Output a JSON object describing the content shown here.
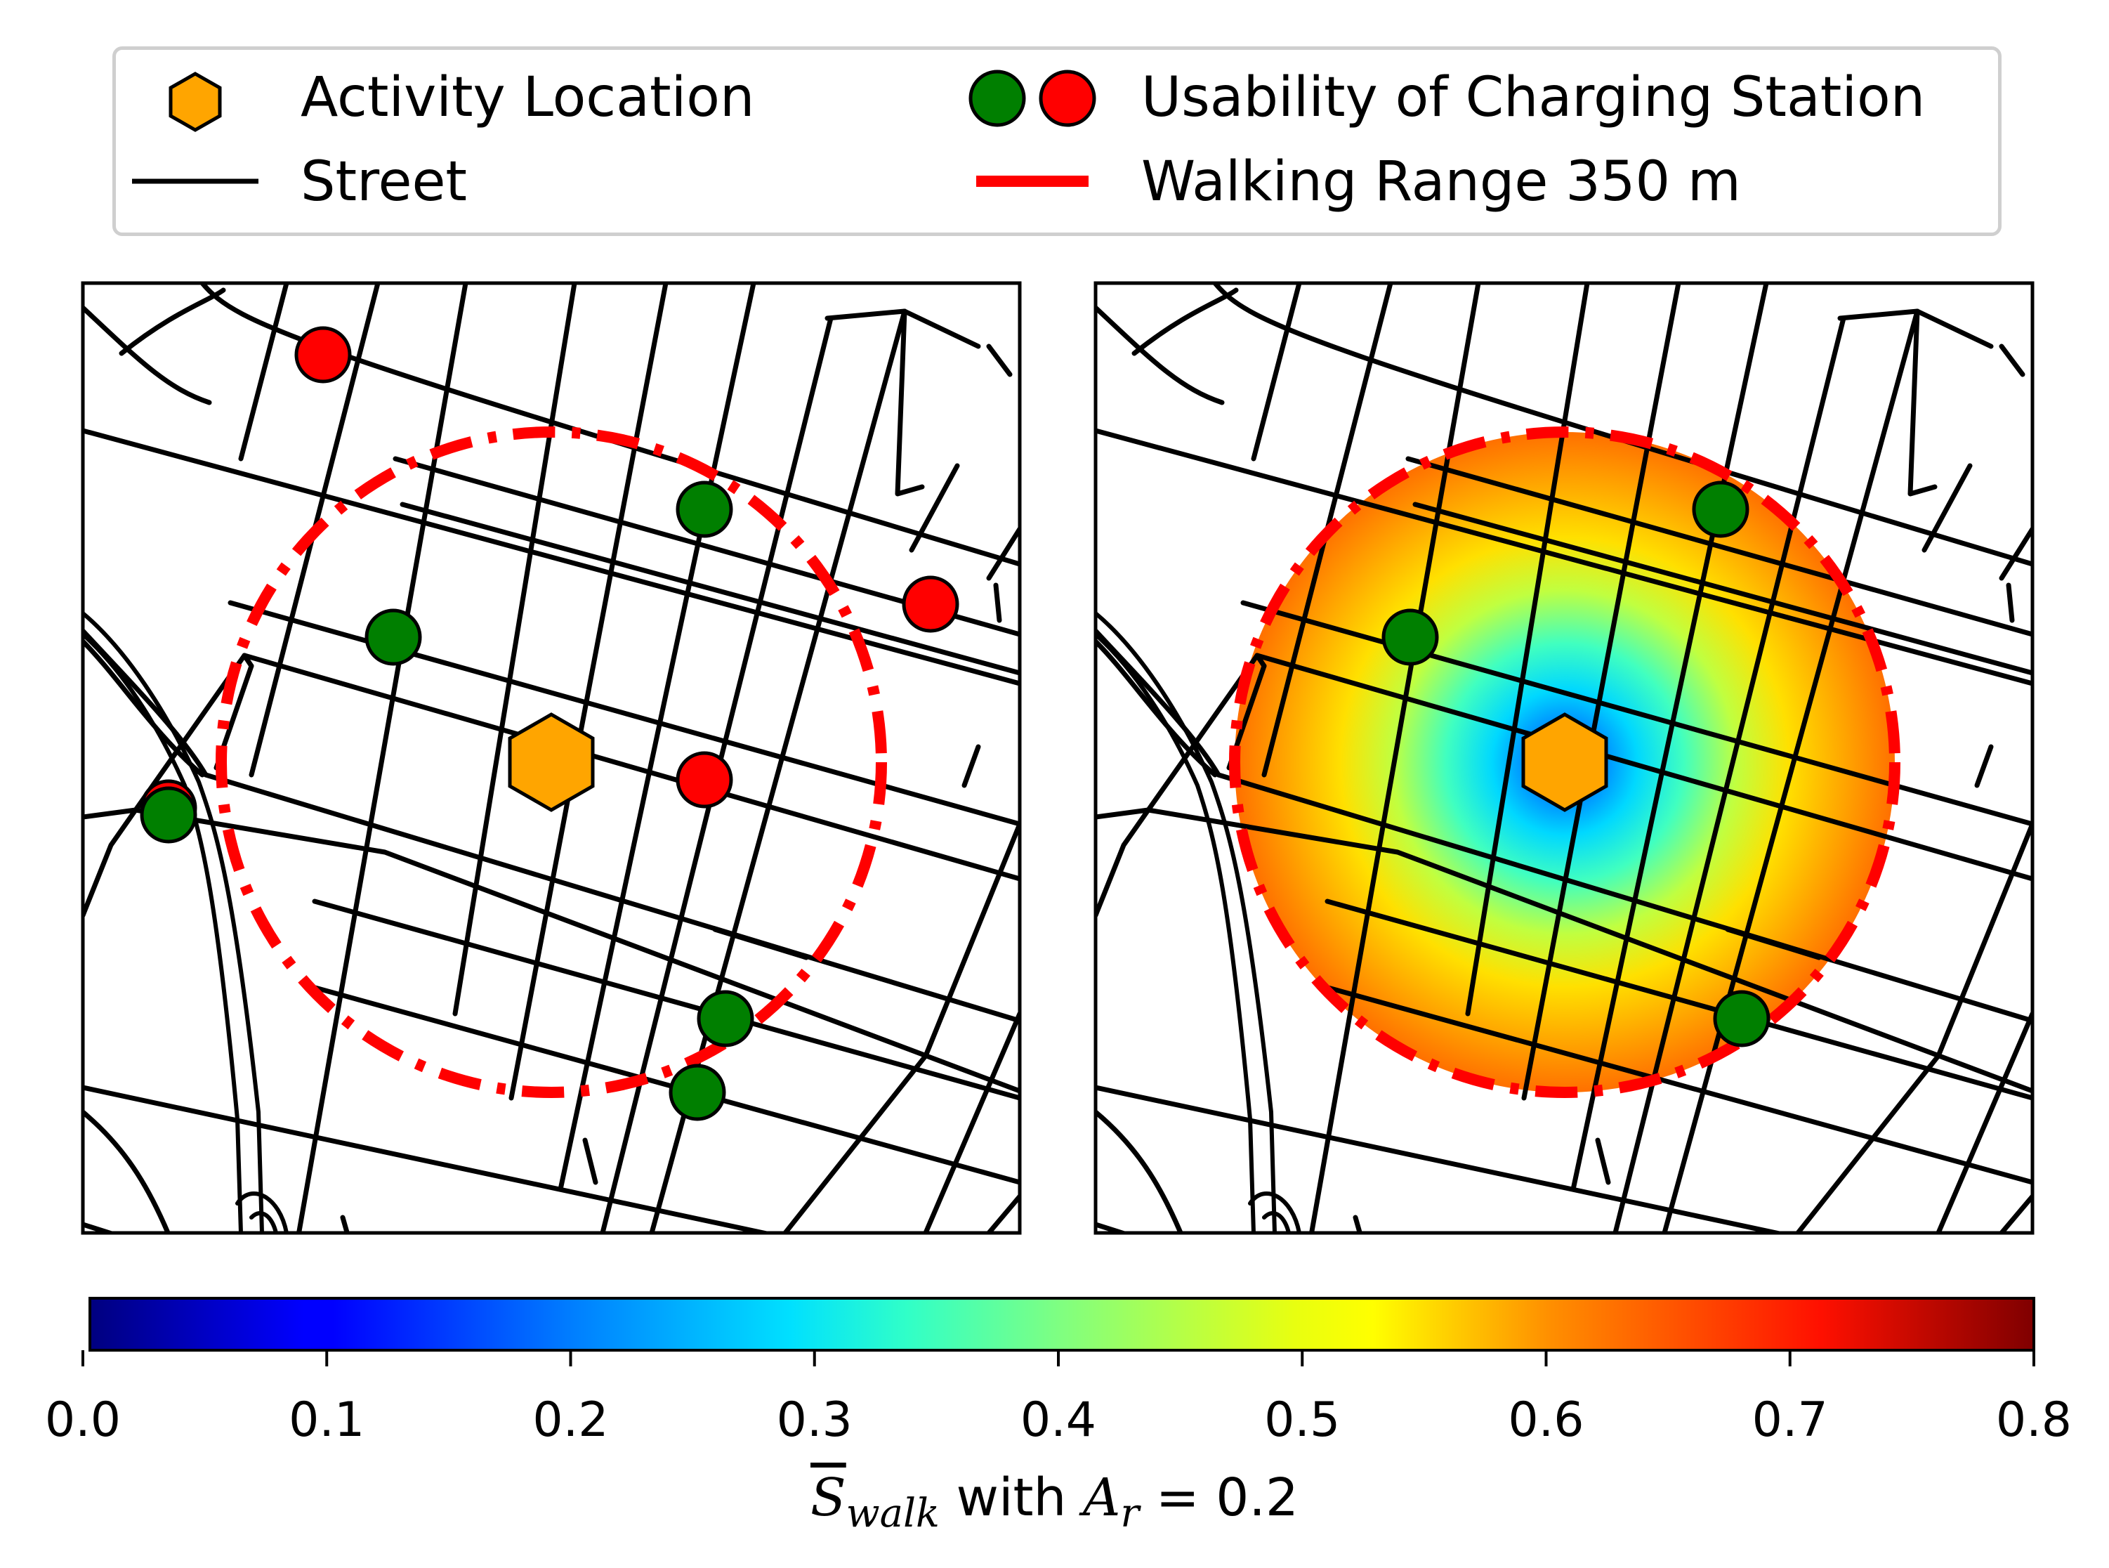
{
  "legend": {
    "activity_location": "Activity Location",
    "street": "Street",
    "usability": "Usability of Charging Station",
    "walking_range": "Walking Range 350 m"
  },
  "colors": {
    "activity": "#FFA500",
    "station_good": "#007F00",
    "station_bad": "#FF0000",
    "range": "#FF0000",
    "street": "#000000"
  },
  "colorbar": {
    "ticks": [
      "0.0",
      "0.1",
      "0.2",
      "0.3",
      "0.4",
      "0.5",
      "0.6",
      "0.7",
      "0.8"
    ],
    "range": [
      0.0,
      0.8
    ],
    "colormap": "jet",
    "label_s": "S",
    "label_sub": "walk",
    "label_mid": " with ",
    "label_a": "A",
    "label_a_sub": "r",
    "label_eq": " = 0.2"
  },
  "panels": [
    {
      "name": "left-map",
      "range_style": "dash-dot",
      "heatmap": false
    },
    {
      "name": "right-map",
      "range_style": "dash-dot",
      "heatmap": true
    }
  ]
}
